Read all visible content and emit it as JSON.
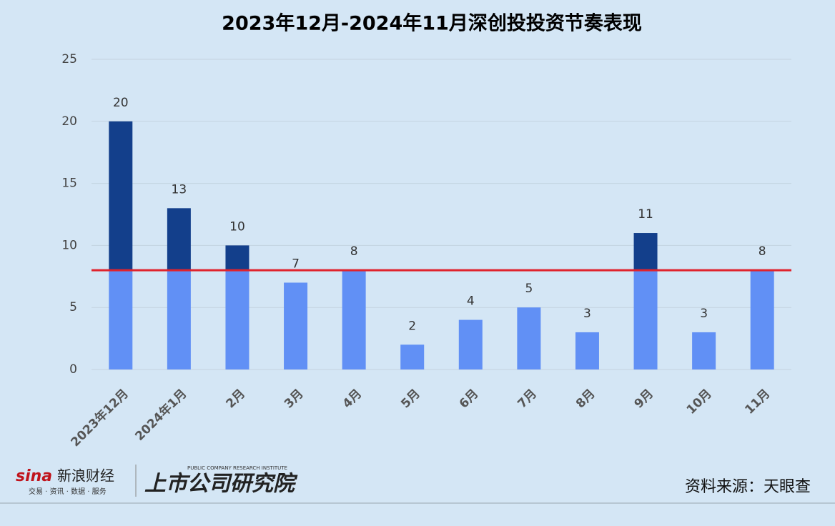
{
  "chart_data": {
    "type": "bar",
    "title": "2023年12月-2024年11月深创投投资节奏表现",
    "categories": [
      "2023年12月",
      "2024年1月",
      "2月",
      "3月",
      "4月",
      "5月",
      "6月",
      "7月",
      "8月",
      "9月",
      "10月",
      "11月"
    ],
    "values": [
      20,
      13,
      10,
      7,
      8,
      2,
      4,
      5,
      3,
      11,
      3,
      8
    ],
    "color": "#6190f5",
    "color_above_line": "#133f8b",
    "reference_line": {
      "value": 8,
      "color": "#e0232d"
    },
    "ylim": [
      0,
      25
    ],
    "yticks": [
      0,
      5,
      10,
      15,
      20,
      25
    ],
    "grid": true
  },
  "footer": {
    "brand": "新浪财经",
    "brand_logo": "sina",
    "brand_tagline": "交易 · 资讯 · 数据 · 服务",
    "institute": "上市公司研究院",
    "institute_en": "PUBLIC COMPANY RESEARCH INSTITUTE",
    "source": "资料来源：天眼查"
  }
}
